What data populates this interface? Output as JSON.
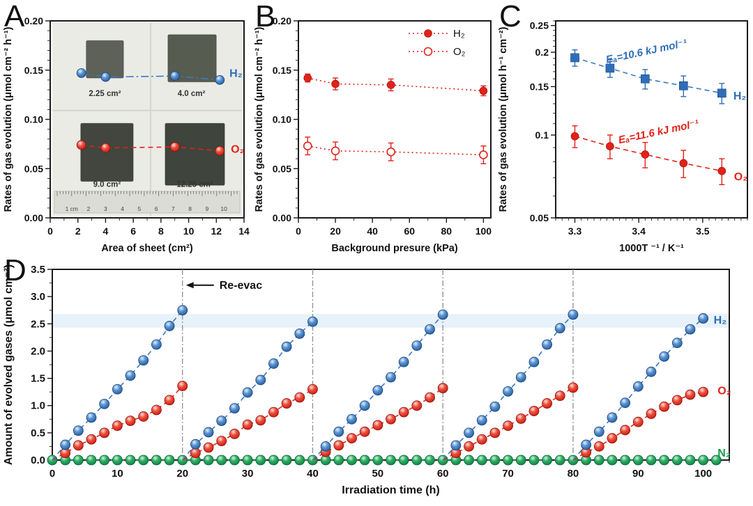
{
  "panels": {
    "A": "A",
    "B": "B",
    "C": "C",
    "D": "D"
  },
  "colors": {
    "blue": "#2e6db8",
    "blue_line": "#3c78bd",
    "blue_dark": "#174579",
    "red": "#e32119",
    "red_dark": "#8f0f06",
    "green": "#169a50",
    "green_dark": "#09602f",
    "axis": "#1a1a1a",
    "vline_gray": "#8f8f8f",
    "band": "#d7e9f7",
    "photo_bg": "#ebebe6",
    "photo_seam": "#d6d6d0",
    "ruler_bg": "#dcdcd7",
    "sample_label": "#333333"
  },
  "chart_data": [
    {
      "id": "A",
      "type": "scatter",
      "xlabel": "Area of sheet (cm²)",
      "ylabel": "Rates of gas evolution (μmol cm⁻² h⁻¹)",
      "xlim": [
        0,
        14
      ],
      "ylim": [
        0,
        0.2
      ],
      "xticks": [
        0,
        2,
        4,
        6,
        8,
        10,
        12,
        14
      ],
      "xtick_labels": [
        "0",
        "2",
        "4",
        "6",
        "8",
        "10",
        "12",
        "14"
      ],
      "xminor_step": 1,
      "yticks": [
        0,
        0.05,
        0.1,
        0.15,
        0.2
      ],
      "ytick_labels": [
        "0.00",
        "0.05",
        "0.10",
        "0.15",
        "0.20"
      ],
      "yminor_step": 0.01,
      "photo": {
        "samples": [
          {
            "label": "2.25 cm²",
            "x": [
              2.6,
              5.3
            ],
            "y": [
              0.142,
              0.18
            ],
            "fill": "#5d6157",
            "label_at": [
              3.95,
              0.1235
            ]
          },
          {
            "label": "4.0 cm²",
            "x": [
              8.5,
              12.0
            ],
            "y": [
              0.138,
              0.186
            ],
            "fill": "#575c50",
            "label_at": [
              10.2,
              0.1235
            ]
          },
          {
            "label": "9.0 cm²",
            "x": [
              2.2,
              6.0
            ],
            "y": [
              0.037,
              0.096
            ],
            "fill": "#42463e",
            "label_at": [
              4.1,
              0.0315
            ]
          },
          {
            "label": "12.25 cm²",
            "x": [
              8.3,
              12.6
            ],
            "y": [
              0.033,
              0.096
            ],
            "fill": "#3f443c",
            "label_at": [
              10.45,
              0.0315
            ]
          }
        ],
        "ruler": {
          "y": [
            0.005,
            0.027
          ],
          "numbers": [
            "1 cm",
            "2",
            "3",
            "4",
            "5",
            "6",
            "7",
            "8",
            "9",
            "10"
          ]
        }
      },
      "series": [
        {
          "name": "H2",
          "label": "H₂",
          "color": "blue",
          "marker": "ball",
          "line": "dashdot",
          "x": [
            2.25,
            4,
            9,
            12.25
          ],
          "y": [
            0.147,
            0.143,
            0.144,
            0.14
          ],
          "label_at": [
            12.95,
            0.1465
          ]
        },
        {
          "name": "O2",
          "label": "O₂",
          "color": "red",
          "marker": "ball",
          "line": "dash",
          "x": [
            2.25,
            4,
            9,
            12.25
          ],
          "y": [
            0.074,
            0.071,
            0.072,
            0.068
          ],
          "label_at": [
            13.05,
            0.0695
          ]
        }
      ]
    },
    {
      "id": "B",
      "type": "scatter",
      "xlabel": "Background presure (kPa)",
      "ylabel": "Rates of gas evolution (μmol cm⁻² h⁻¹)",
      "xlim": [
        0,
        104
      ],
      "ylim": [
        0,
        0.2
      ],
      "xticks": [
        0,
        20,
        40,
        60,
        80,
        100
      ],
      "xtick_labels": [
        "0",
        "20",
        "40",
        "60",
        "80",
        "100"
      ],
      "xminor_step": 10,
      "yticks": [
        0,
        0.05,
        0.1,
        0.15,
        0.2
      ],
      "ytick_labels": [
        "0.00",
        "0.05",
        "0.10",
        "0.15",
        "0.20"
      ],
      "yminor_step": 0.01,
      "legend": [
        {
          "label": "H₂",
          "marker": "circle"
        },
        {
          "label": "O₂",
          "marker": "circle-open"
        }
      ],
      "series": [
        {
          "name": "H2",
          "label": "H₂",
          "color": "red",
          "marker": "circle",
          "line": "dot",
          "x": [
            5,
            20,
            50,
            100
          ],
          "y": [
            0.142,
            0.136,
            0.135,
            0.129
          ],
          "yerr": [
            0.004,
            0.006,
            0.006,
            0.005
          ]
        },
        {
          "name": "O2",
          "label": "O₂",
          "color": "red",
          "marker": "circle-open",
          "line": "dot",
          "x": [
            5,
            20,
            50,
            100
          ],
          "y": [
            0.073,
            0.068,
            0.067,
            0.064
          ],
          "yerr": [
            0.009,
            0.009,
            0.009,
            0.009
          ]
        }
      ]
    },
    {
      "id": "C",
      "type": "scatter",
      "xlabel": "1000T ⁻¹ / K⁻¹",
      "ylabel": "Rates of gas evolution (μmol h⁻¹ cm⁻²)",
      "xlim": [
        3.27,
        3.57
      ],
      "yscale": "log",
      "ylim": [
        0.05,
        0.26
      ],
      "xticks": [
        3.3,
        3.4,
        3.5
      ],
      "xtick_labels": [
        "3.3",
        "3.4",
        "3.5"
      ],
      "xminor_step": 0.01,
      "yticks": [
        0.05,
        0.1,
        0.15,
        0.2,
        0.25
      ],
      "ytick_labels": [
        "0.05",
        "0.1",
        "0.15",
        "0.2",
        "0.25"
      ],
      "yminor_step": 0.01,
      "annotations": [
        {
          "text": "Eₐ=10.6 kJ mol⁻¹",
          "x": 3.413,
          "y": 0.196,
          "rot": -12,
          "color": "blue"
        },
        {
          "text": "Eₐ=11.6 kJ mol⁻¹",
          "x": 3.432,
          "y": 0.1,
          "rot": -12,
          "color": "red"
        }
      ],
      "series": [
        {
          "name": "H2",
          "label": "H₂",
          "color": "blue",
          "marker": "square",
          "line": "dash",
          "x": [
            3.3,
            3.355,
            3.41,
            3.47,
            3.53
          ],
          "y": [
            0.191,
            0.175,
            0.16,
            0.151,
            0.142
          ],
          "yerr": [
            0.013,
            0.013,
            0.013,
            0.013,
            0.012
          ],
          "label_at": [
            3.548,
            0.1385
          ]
        },
        {
          "name": "O2",
          "label": "O₂",
          "color": "red",
          "marker": "circle",
          "line": "dash",
          "x": [
            3.3,
            3.355,
            3.41,
            3.47,
            3.53
          ],
          "y": [
            0.099,
            0.091,
            0.085,
            0.079,
            0.074
          ],
          "yerr": [
            0.009,
            0.009,
            0.009,
            0.009,
            0.008
          ],
          "label_at": [
            3.549,
            0.0705
          ]
        }
      ]
    },
    {
      "id": "D",
      "type": "scatter",
      "xlabel": "Irradiation time (h)",
      "ylabel": "Amount of evolved gases (μmol cm⁻²)",
      "xlim": [
        0,
        104
      ],
      "ylim": [
        0,
        3.5
      ],
      "xticks": [
        0,
        10,
        20,
        30,
        40,
        50,
        60,
        70,
        80,
        90,
        100
      ],
      "xtick_labels": [
        "0",
        "10",
        "20",
        "30",
        "40",
        "50",
        "60",
        "70",
        "80",
        "90",
        "100"
      ],
      "xminor_step": 2,
      "yticks": [
        0,
        0.5,
        1.0,
        1.5,
        2.0,
        2.5,
        3.0,
        3.5
      ],
      "ytick_labels": [
        "0.0",
        "0.5",
        "1.0",
        "1.5",
        "2.0",
        "2.5",
        "3.0",
        "3.5"
      ],
      "yminor_step": 0.25,
      "band": [
        2.43,
        2.68
      ],
      "vlines": [
        20,
        40,
        60,
        80
      ],
      "reevac": {
        "text": "Re-evac",
        "x": 20,
        "y": 3.21
      },
      "series": [
        {
          "name": "N2",
          "label": "N₂",
          "color": "green",
          "marker": "ball",
          "line": "dash",
          "zero_line": {
            "start": 0,
            "end": 102,
            "step": 2,
            "y": 0
          },
          "label_at": [
            102.2,
            0.13
          ]
        },
        {
          "name": "O2",
          "label": "O₂",
          "color": "red",
          "marker": "ball",
          "line": "dash",
          "segments": [
            {
              "start": 0,
              "step": 2,
              "values": [
                0.13,
                0.27,
                0.38,
                0.5,
                0.63,
                0.72,
                0.8,
                0.92,
                1.1,
                1.36
              ]
            },
            {
              "start": 20,
              "step": 2,
              "values": [
                0.13,
                0.23,
                0.35,
                0.48,
                0.65,
                0.73,
                0.88,
                1.04,
                1.15,
                1.3
              ]
            },
            {
              "start": 40,
              "step": 2,
              "values": [
                0.15,
                0.27,
                0.4,
                0.52,
                0.64,
                0.75,
                0.88,
                1.0,
                1.15,
                1.32
              ]
            },
            {
              "start": 60,
              "step": 2,
              "values": [
                0.13,
                0.25,
                0.38,
                0.5,
                0.63,
                0.76,
                0.9,
                1.04,
                1.18,
                1.33
              ]
            },
            {
              "start": 80,
              "step": 2,
              "values": [
                0.14,
                0.25,
                0.4,
                0.55,
                0.7,
                0.85,
                0.98,
                1.1,
                1.2,
                1.25
              ]
            }
          ],
          "label_at": [
            102.2,
            1.27
          ]
        },
        {
          "name": "H2",
          "label": "H₂",
          "color": "blue",
          "marker": "ball",
          "line": "dash",
          "segments": [
            {
              "start": 0,
              "step": 2,
              "values": [
                0.28,
                0.54,
                0.78,
                1.03,
                1.3,
                1.55,
                1.83,
                2.12,
                2.46,
                2.75
              ]
            },
            {
              "start": 20,
              "step": 2,
              "values": [
                0.29,
                0.51,
                0.72,
                0.95,
                1.24,
                1.47,
                1.77,
                2.08,
                2.32,
                2.54
              ]
            },
            {
              "start": 40,
              "step": 2,
              "values": [
                0.25,
                0.52,
                0.75,
                1.0,
                1.28,
                1.52,
                1.8,
                2.1,
                2.4,
                2.67
              ]
            },
            {
              "start": 60,
              "step": 2,
              "values": [
                0.27,
                0.5,
                0.73,
                0.98,
                1.26,
                1.52,
                1.8,
                2.12,
                2.42,
                2.67
              ]
            },
            {
              "start": 80,
              "step": 2,
              "values": [
                0.28,
                0.52,
                0.78,
                1.05,
                1.35,
                1.62,
                1.9,
                2.15,
                2.4,
                2.6
              ]
            }
          ],
          "label_at": [
            101.6,
            2.57
          ]
        }
      ]
    }
  ]
}
